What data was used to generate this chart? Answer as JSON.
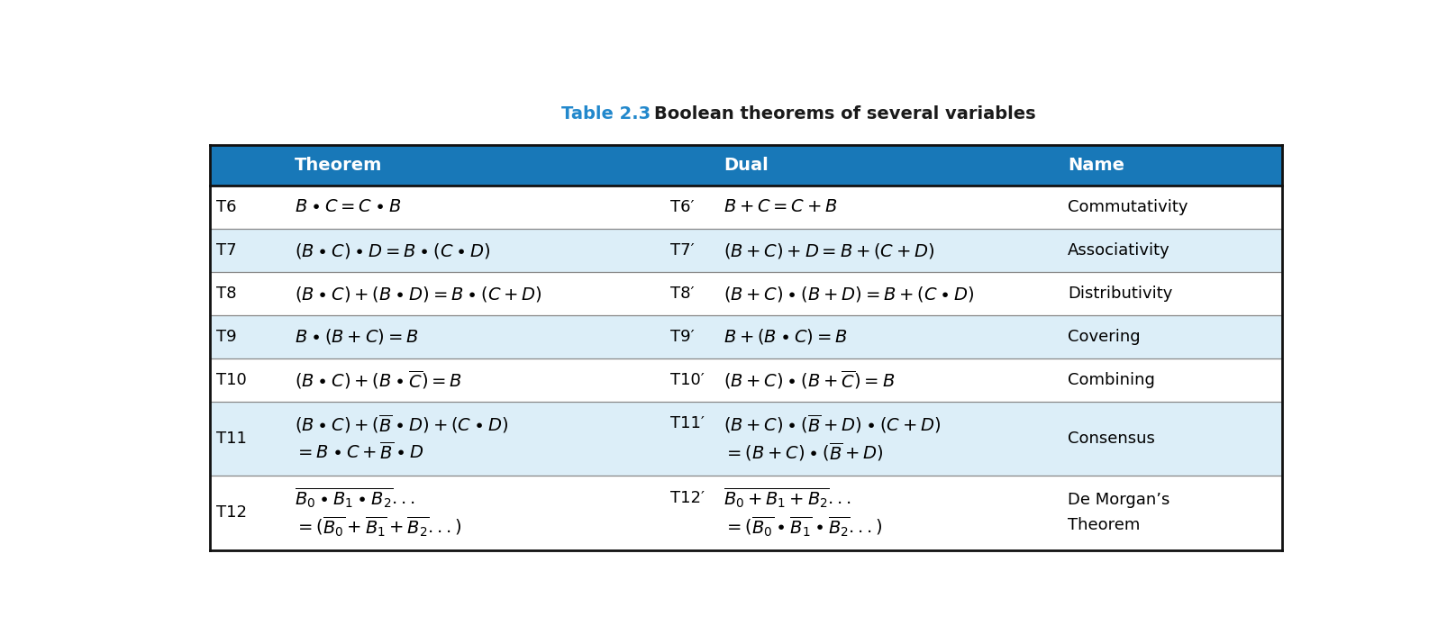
{
  "title_prefix": "Table 2.3",
  "title_rest": "  Boolean theorems of several variables",
  "header_bg": "#1878b8",
  "header_text_color": "#ffffff",
  "row_bg_light": "#dceef8",
  "row_bg_white": "#ffffff",
  "title_color_prefix": "#2288cc",
  "title_color_rest": "#1a1a1a",
  "rows": [
    {
      "id": "T6",
      "theorem": "$B \\bullet C = C \\bullet B$",
      "dual_id": "T6′",
      "dual": "$B + C = C + B$",
      "name": "Commutativity",
      "multiline": false,
      "bg": "white"
    },
    {
      "id": "T7",
      "theorem": "$(B \\bullet C) \\bullet D = B \\bullet (C \\bullet D)$",
      "dual_id": "T7′",
      "dual": "$(B + C) + D = B + (C + D)$",
      "name": "Associativity",
      "multiline": false,
      "bg": "light"
    },
    {
      "id": "T8",
      "theorem": "$(B \\bullet C) + (B \\bullet D) = B \\bullet (C + D)$",
      "dual_id": "T8′",
      "dual": "$(B + C) \\bullet (B + D) = B + (C \\bullet D)$",
      "name": "Distributivity",
      "multiline": false,
      "bg": "white"
    },
    {
      "id": "T9",
      "theorem": "$B \\bullet (B + C) = B$",
      "dual_id": "T9′",
      "dual": "$B + (B \\bullet C) = B$",
      "name": "Covering",
      "multiline": false,
      "bg": "light"
    },
    {
      "id": "T10",
      "theorem": "$(B \\bullet C) + (B \\bullet \\overline{C}) = B$",
      "dual_id": "T10′",
      "dual": "$(B + C) \\bullet (B + \\overline{C}) = B$",
      "name": "Combining",
      "multiline": false,
      "bg": "white"
    },
    {
      "id": "T11",
      "theorem_line1": "$(B \\bullet C) + (\\overline{B} \\bullet D) + (C \\bullet D)$",
      "theorem_line2": "$= B \\bullet C + \\overline{B} \\bullet D$",
      "dual_id": "T11′",
      "dual_line1": "$(B + C) \\bullet (\\overline{B} + D) \\bullet (C + D)$",
      "dual_line2": "$= (B + C) \\bullet (\\overline{B} + D)$",
      "name": "Consensus",
      "multiline": true,
      "bg": "light"
    },
    {
      "id": "T12",
      "theorem_line1": "$\\overline{B_0 \\bullet B_1 \\bullet B_2}...$",
      "theorem_line2": "$= (\\overline{B_0} + \\overline{B_1} + \\overline{B_2}...)$",
      "dual_id": "T12′",
      "dual_line1": "$\\overline{B_0 + B_1 + B_2}...$",
      "dual_line2": "$= (\\overline{B_0} \\bullet \\overline{B_1} \\bullet \\overline{B_2}...)$",
      "name": "De Morgan’s\nTheorem",
      "multiline": true,
      "bg": "white"
    }
  ],
  "figsize": [
    16.16,
    6.95
  ],
  "dpi": 100
}
